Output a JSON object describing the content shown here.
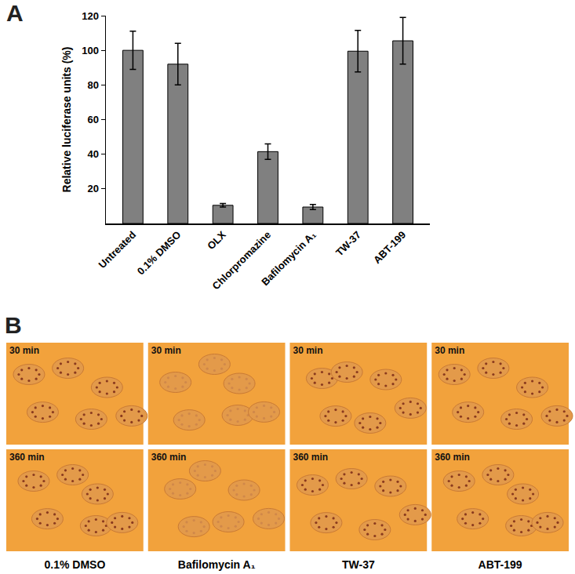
{
  "chart_data": {
    "type": "bar",
    "panel_label": "A",
    "y_label": "Relative luciferase units (%)",
    "categories": [
      "Untreated",
      "0.1% DMSO",
      "OLX",
      "Chlorpromazine",
      "Bafilomycin A₁",
      "TW-37",
      "ABT-199"
    ],
    "values": [
      100,
      92,
      10.5,
      41.5,
      9.5,
      99.5,
      105.5
    ],
    "errors": [
      11,
      12,
      1,
      4.5,
      1.5,
      12,
      13.5
    ],
    "color": "#808080",
    "ylim": [
      0,
      120
    ],
    "yticks": [
      20,
      40,
      60,
      80,
      100,
      120
    ],
    "grid": false
  },
  "image_panel": {
    "label": "B",
    "rows": [
      "30 min",
      "360 min"
    ],
    "columns": [
      "0.1% DMSO",
      "Bafilomycin A₁",
      "TW-37",
      "ABT-199"
    ]
  }
}
